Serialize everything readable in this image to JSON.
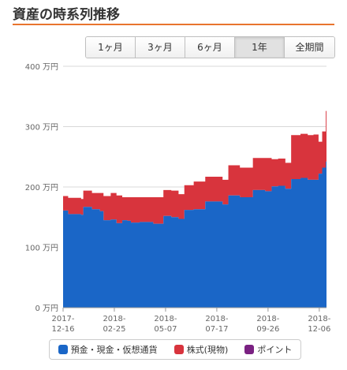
{
  "header": {
    "title": "資産の時系列推移"
  },
  "range_selector": {
    "buttons": [
      {
        "label": "1ヶ月",
        "active": false
      },
      {
        "label": "3ヶ月",
        "active": false
      },
      {
        "label": "6ヶ月",
        "active": false
      },
      {
        "label": "1年",
        "active": true
      },
      {
        "label": "全期間",
        "active": false
      }
    ]
  },
  "legend": {
    "items": [
      {
        "label": "預金・現金・仮想通貨",
        "color": "#1a66c7"
      },
      {
        "label": "株式(現物)",
        "color": "#d8343d"
      },
      {
        "label": "ポイント",
        "color": "#7a2182"
      }
    ]
  },
  "chart_data": {
    "type": "area",
    "stacked": true,
    "ylim": [
      0,
      400
    ],
    "y_ticks": [
      {
        "value": 0,
        "label": "0 万円"
      },
      {
        "value": 100,
        "label": "100 万円"
      },
      {
        "value": 200,
        "label": "200 万円"
      },
      {
        "value": 300,
        "label": "300 万円"
      },
      {
        "value": 400,
        "label": "400 万円"
      }
    ],
    "xlim": [
      "2017-12-16",
      "2018-12-16"
    ],
    "x_ticks": [
      {
        "date": "2017-12-16",
        "label": [
          "2017-",
          "12-16"
        ]
      },
      {
        "date": "2018-02-25",
        "label": [
          "2018-",
          "02-25"
        ]
      },
      {
        "date": "2018-05-07",
        "label": [
          "2018-",
          "05-07"
        ]
      },
      {
        "date": "2018-07-17",
        "label": [
          "2018-",
          "07-17"
        ]
      },
      {
        "date": "2018-09-26",
        "label": [
          "2018-",
          "09-26"
        ]
      },
      {
        "date": "2018-12-06",
        "label": [
          "2018-",
          "12-06"
        ]
      }
    ],
    "grid": true,
    "legend_position": "bottom",
    "series": [
      {
        "name": "預金・現金・仮想通貨",
        "color": "#1a66c7",
        "points": [
          [
            "2017-12-16",
            161
          ],
          [
            "2017-12-23",
            155
          ],
          [
            "2018-01-10",
            154
          ],
          [
            "2018-01-13",
            167
          ],
          [
            "2018-01-25",
            163
          ],
          [
            "2018-02-05",
            160
          ],
          [
            "2018-02-10",
            145
          ],
          [
            "2018-02-20",
            146
          ],
          [
            "2018-02-28",
            140
          ],
          [
            "2018-03-08",
            145
          ],
          [
            "2018-03-15",
            144
          ],
          [
            "2018-03-20",
            141
          ],
          [
            "2018-04-01",
            142
          ],
          [
            "2018-04-20",
            139
          ],
          [
            "2018-05-04",
            152
          ],
          [
            "2018-05-15",
            150
          ],
          [
            "2018-05-25",
            147
          ],
          [
            "2018-06-02",
            162
          ],
          [
            "2018-06-15",
            163
          ],
          [
            "2018-06-24",
            163
          ],
          [
            "2018-07-01",
            176
          ],
          [
            "2018-07-15",
            176
          ],
          [
            "2018-07-25",
            171
          ],
          [
            "2018-08-02",
            186
          ],
          [
            "2018-08-18",
            183
          ],
          [
            "2018-08-28",
            183
          ],
          [
            "2018-09-05",
            195
          ],
          [
            "2018-09-15",
            195
          ],
          [
            "2018-09-22",
            193
          ],
          [
            "2018-10-01",
            201
          ],
          [
            "2018-10-10",
            202
          ],
          [
            "2018-10-20",
            197
          ],
          [
            "2018-10-28",
            213
          ],
          [
            "2018-11-10",
            215
          ],
          [
            "2018-11-20",
            212
          ],
          [
            "2018-11-28",
            212
          ],
          [
            "2018-12-05",
            222
          ],
          [
            "2018-12-10",
            232
          ],
          [
            "2018-12-15",
            242
          ]
        ]
      },
      {
        "name": "株式(現物)",
        "color": "#d8343d",
        "points": [
          [
            "2017-12-16",
            24
          ],
          [
            "2017-12-23",
            27
          ],
          [
            "2018-01-10",
            26
          ],
          [
            "2018-01-13",
            27
          ],
          [
            "2018-01-25",
            27
          ],
          [
            "2018-02-05",
            30
          ],
          [
            "2018-02-10",
            40
          ],
          [
            "2018-02-20",
            44
          ],
          [
            "2018-02-28",
            46
          ],
          [
            "2018-03-08",
            38
          ],
          [
            "2018-03-15",
            39
          ],
          [
            "2018-03-20",
            42
          ],
          [
            "2018-04-01",
            41
          ],
          [
            "2018-04-20",
            44
          ],
          [
            "2018-05-04",
            43
          ],
          [
            "2018-05-15",
            44
          ],
          [
            "2018-05-25",
            41
          ],
          [
            "2018-06-02",
            41
          ],
          [
            "2018-06-15",
            46
          ],
          [
            "2018-06-24",
            46
          ],
          [
            "2018-07-01",
            41
          ],
          [
            "2018-07-15",
            41
          ],
          [
            "2018-07-25",
            41
          ],
          [
            "2018-08-02",
            50
          ],
          [
            "2018-08-18",
            49
          ],
          [
            "2018-08-28",
            49
          ],
          [
            "2018-09-05",
            53
          ],
          [
            "2018-09-15",
            53
          ],
          [
            "2018-09-22",
            55
          ],
          [
            "2018-10-01",
            45
          ],
          [
            "2018-10-10",
            45
          ],
          [
            "2018-10-20",
            43
          ],
          [
            "2018-10-28",
            73
          ],
          [
            "2018-11-10",
            73
          ],
          [
            "2018-11-20",
            74
          ],
          [
            "2018-11-28",
            75
          ],
          [
            "2018-12-05",
            53
          ],
          [
            "2018-12-10",
            60
          ],
          [
            "2018-12-15",
            84
          ]
        ]
      },
      {
        "name": "ポイント",
        "color": "#7a2182",
        "points": [
          [
            "2017-12-16",
            0
          ],
          [
            "2018-12-15",
            0
          ]
        ]
      }
    ]
  }
}
